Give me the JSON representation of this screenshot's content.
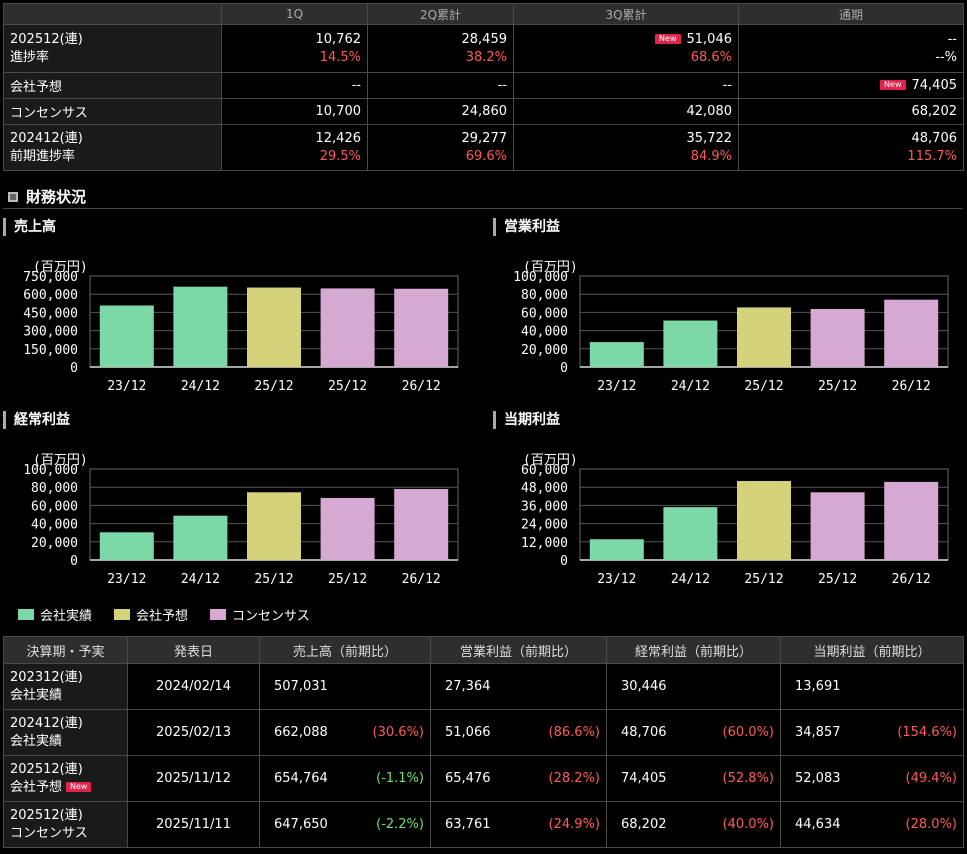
{
  "progress": {
    "headers": [
      "",
      "1Q",
      "2Q累計",
      "3Q累計",
      "通期"
    ],
    "rows": [
      {
        "label1": "202512(連)",
        "label2": "進捗率",
        "v": [
          "10,762",
          "28,459",
          "51,046",
          "--"
        ],
        "p": [
          "14.5%",
          "38.2%",
          "68.6%",
          "--%"
        ]
      },
      {
        "label1": "会社予想",
        "v": [
          "--",
          "--",
          "--",
          "74,405"
        ]
      },
      {
        "label1": "コンセンサス",
        "v": [
          "10,700",
          "24,860",
          "42,080",
          "68,202"
        ]
      },
      {
        "label1": "202412(連)",
        "label2": "前期進捗率",
        "v": [
          "12,426",
          "29,277",
          "35,722",
          "48,706"
        ],
        "p": [
          "29.5%",
          "69.6%",
          "84.9%",
          "115.7%"
        ]
      }
    ],
    "new_label": "New"
  },
  "section_title": "財務状況",
  "colors": {
    "actual": "#7dd8a8",
    "forecast": "#d4d27a",
    "consensus": "#d6a9d2",
    "red": "#ff5a5a",
    "green": "#6ce06c"
  },
  "charts": [
    {
      "title": "売上高",
      "unit": "(百万円)",
      "ticks": [
        "750,000",
        "600,000",
        "450,000",
        "300,000",
        "150,000",
        "0"
      ],
      "ymax": 750000,
      "categories": [
        "23/12",
        "24/12",
        "25/12",
        "25/12",
        "26/12"
      ],
      "values": [
        507031,
        662088,
        654764,
        647650,
        645000
      ],
      "kinds": [
        "actual",
        "actual",
        "forecast",
        "consensus",
        "consensus"
      ]
    },
    {
      "title": "営業利益",
      "unit": "(百万円)",
      "ticks": [
        "100,000",
        "80,000",
        "60,000",
        "40,000",
        "20,000",
        "0"
      ],
      "ymax": 100000,
      "categories": [
        "23/12",
        "24/12",
        "25/12",
        "25/12",
        "26/12"
      ],
      "values": [
        27364,
        51066,
        65476,
        63761,
        74000
      ],
      "kinds": [
        "actual",
        "actual",
        "forecast",
        "consensus",
        "consensus"
      ]
    },
    {
      "title": "経常利益",
      "unit": "(百万円)",
      "ticks": [
        "100,000",
        "80,000",
        "60,000",
        "40,000",
        "20,000",
        "0"
      ],
      "ymax": 100000,
      "categories": [
        "23/12",
        "24/12",
        "25/12",
        "25/12",
        "26/12"
      ],
      "values": [
        30446,
        48706,
        74405,
        68202,
        78000
      ],
      "kinds": [
        "actual",
        "actual",
        "forecast",
        "consensus",
        "consensus"
      ]
    },
    {
      "title": "当期利益",
      "unit": "(百万円)",
      "ticks": [
        "60,000",
        "48,000",
        "36,000",
        "24,000",
        "12,000",
        "0"
      ],
      "ymax": 60000,
      "categories": [
        "23/12",
        "24/12",
        "25/12",
        "25/12",
        "26/12"
      ],
      "values": [
        13691,
        34857,
        52083,
        44634,
        51500
      ],
      "kinds": [
        "actual",
        "actual",
        "forecast",
        "consensus",
        "consensus"
      ]
    }
  ],
  "legend": [
    {
      "label": "会社実績",
      "kind": "actual"
    },
    {
      "label": "会社予想",
      "kind": "forecast"
    },
    {
      "label": "コンセンサス",
      "kind": "consensus"
    }
  ],
  "results": {
    "headers": [
      "決算期・予実",
      "発表日",
      "売上高（前期比）",
      "営業利益（前期比）",
      "経常利益（前期比）",
      "当期利益（前期比）"
    ],
    "rows": [
      {
        "p1": "202312(連)",
        "p2": "会社実績",
        "date": "2024/02/14",
        "vals": [
          [
            "507,031",
            ""
          ],
          [
            "27,364",
            ""
          ],
          [
            "30,446",
            ""
          ],
          [
            "13,691",
            ""
          ]
        ]
      },
      {
        "p1": "202412(連)",
        "p2": "会社実績",
        "date": "2025/02/13",
        "vals": [
          [
            "662,088",
            "(30.6%)"
          ],
          [
            "51,066",
            "(86.6%)"
          ],
          [
            "48,706",
            "(60.0%)"
          ],
          [
            "34,857",
            "(154.6%)"
          ]
        ]
      },
      {
        "p1": "202512(連)",
        "p2": "会社予想",
        "new": true,
        "date": "2025/11/12",
        "vals": [
          [
            "654,764",
            "(-1.1%)"
          ],
          [
            "65,476",
            "(28.2%)"
          ],
          [
            "74,405",
            "(52.8%)"
          ],
          [
            "52,083",
            "(49.4%)"
          ]
        ]
      },
      {
        "p1": "202512(連)",
        "p2": "コンセンサス",
        "date": "2025/11/11",
        "vals": [
          [
            "647,650",
            "(-2.2%)"
          ],
          [
            "63,761",
            "(24.9%)"
          ],
          [
            "68,202",
            "(40.0%)"
          ],
          [
            "44,634",
            "(28.0%)"
          ]
        ]
      }
    ]
  }
}
